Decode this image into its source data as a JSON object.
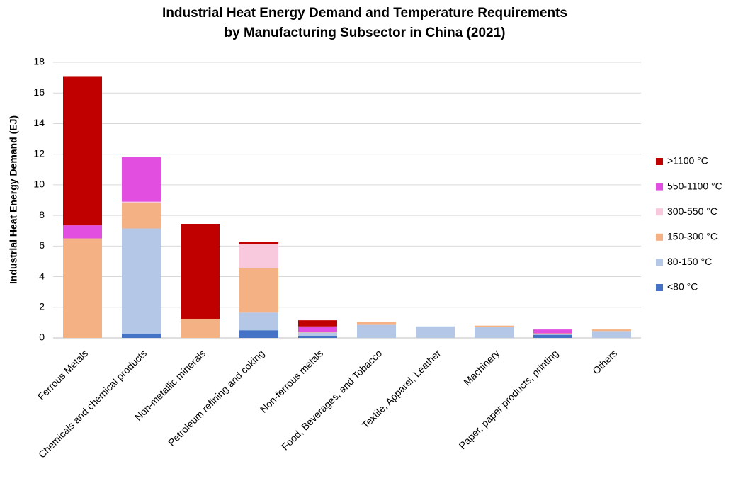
{
  "chart_data": {
    "type": "stacked_bar",
    "title": [
      "Industrial Heat Energy Demand and Temperature Requirements",
      "by Manufacturing Subsector in China (2021)"
    ],
    "y_label": "Industrial Heat Energy Demand (EJ)",
    "categories": [
      "Ferrous Metals",
      "Chemicals and chemical products",
      "Non-metallic minerals",
      "Petroleum refining and coking",
      "Non-ferrous metals",
      "Food, Beverages, and Tobacco",
      "Textile, Apparel, Leather",
      "Machinery",
      "Paper, paper products, printing",
      "Others"
    ],
    "series": [
      {
        "name": "<80 °C",
        "color": "#4472c4",
        "values": [
          0,
          0.25,
          0,
          0.5,
          0.1,
          0,
          0,
          0,
          0.2,
          0
        ]
      },
      {
        "name": "80-150 °C",
        "color": "#b4c7e7",
        "values": [
          0,
          6.9,
          0,
          1.15,
          0.25,
          0.85,
          0.75,
          0.7,
          0.05,
          0.45
        ]
      },
      {
        "name": "150-300 °C",
        "color": "#f4b183",
        "values": [
          6.5,
          1.65,
          1.25,
          2.9,
          0.05,
          0.2,
          0,
          0.1,
          0.05,
          0.1
        ]
      },
      {
        "name": "300-550 °C",
        "color": "#f8c8dc",
        "values": [
          0,
          0.1,
          0,
          1.6,
          0,
          0,
          0,
          0,
          0,
          0
        ]
      },
      {
        "name": "550-1100 °C",
        "color": "#e24fe0",
        "values": [
          0.85,
          2.9,
          0,
          0,
          0.35,
          0,
          0,
          0,
          0.25,
          0
        ]
      },
      {
        "name": ">1100 °C",
        "color": "#c00000",
        "values": [
          9.75,
          0,
          6.2,
          0.1,
          0.4,
          0,
          0,
          0,
          0,
          0
        ]
      }
    ],
    "ylim": [
      0,
      18
    ],
    "yticks": [
      0,
      2,
      4,
      6,
      8,
      10,
      12,
      14,
      16,
      18
    ],
    "grid": true,
    "legend": "right"
  }
}
